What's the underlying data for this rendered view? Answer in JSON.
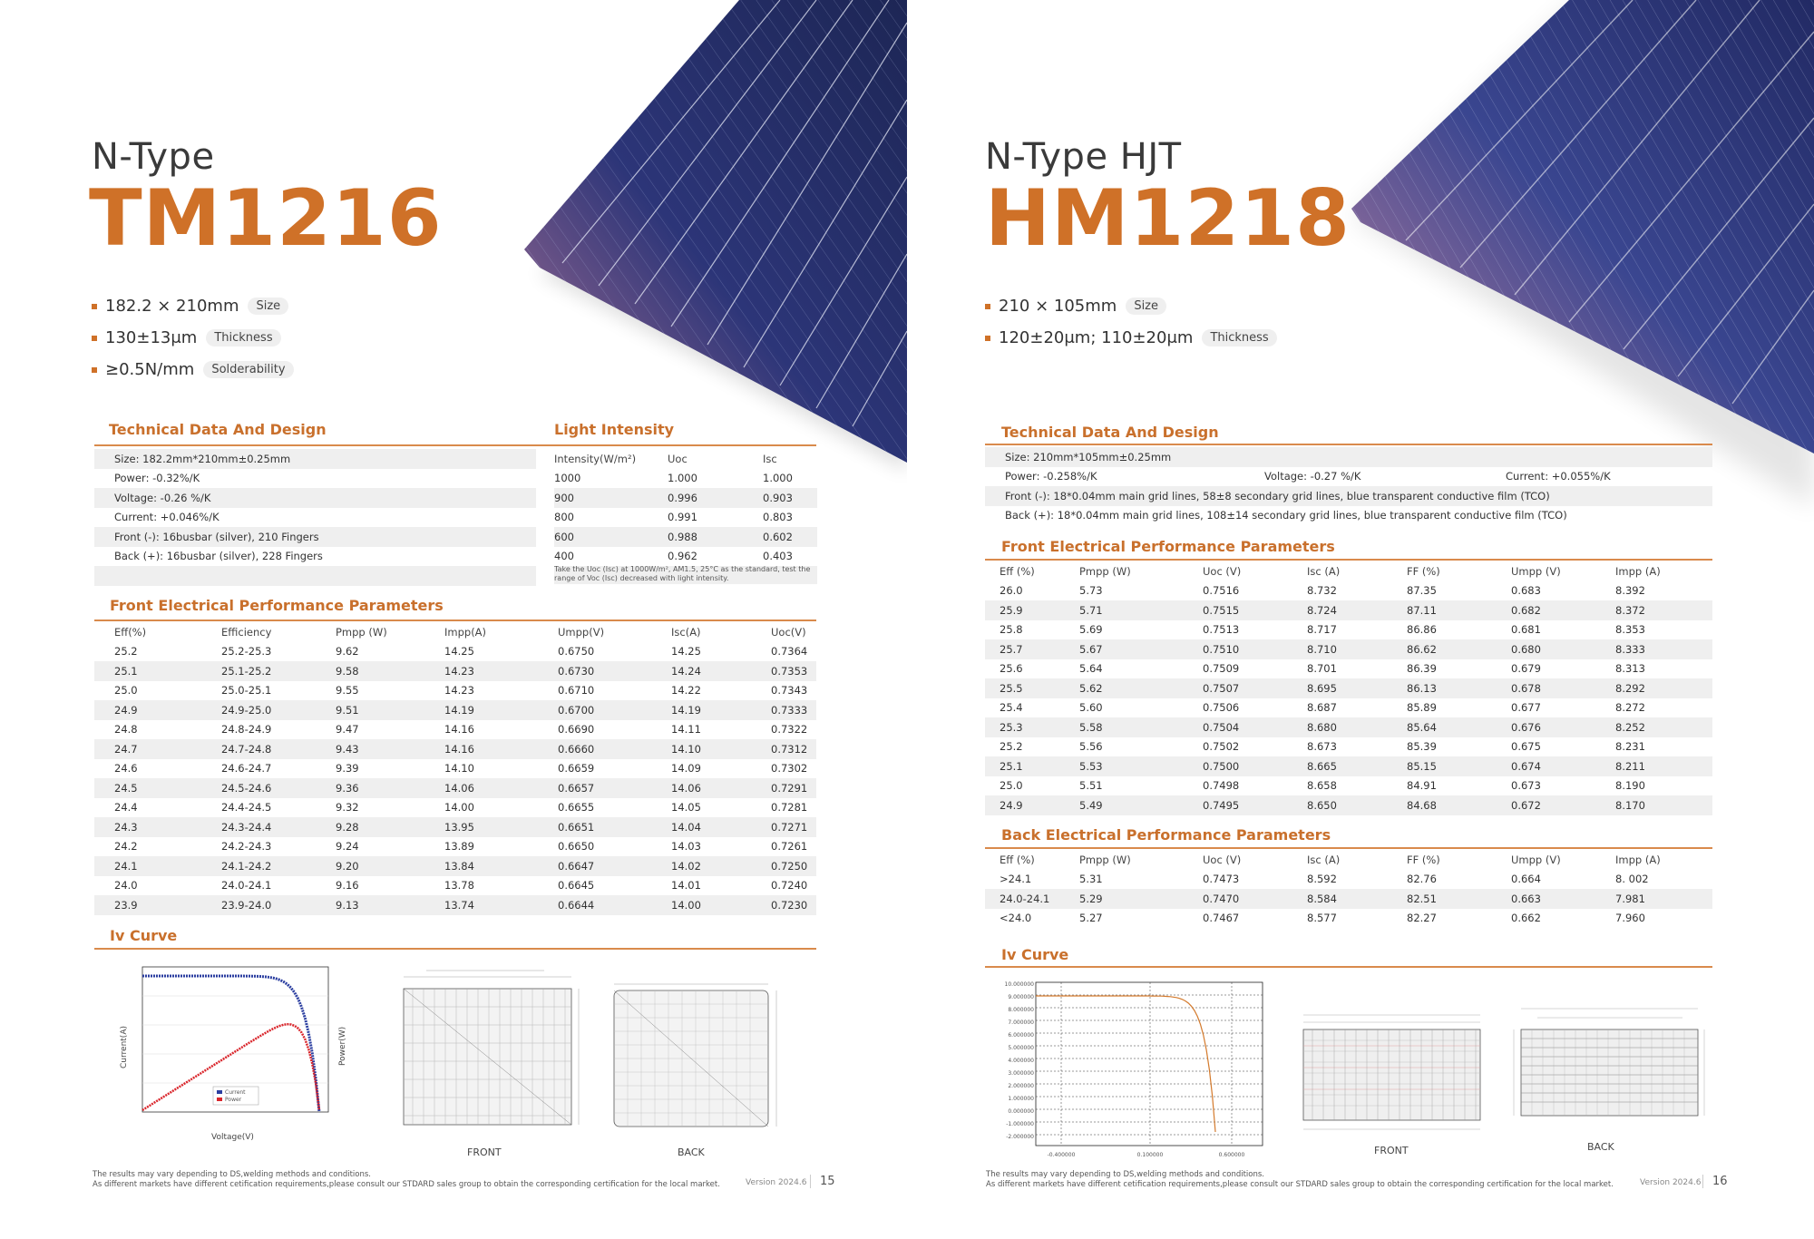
{
  "left": {
    "subtitle": "N-Type",
    "model": "TM1216",
    "specs": [
      {
        "value": "182.2 × 210mm",
        "tag": "Size"
      },
      {
        "value": "130±13μm",
        "tag": "Thickness"
      },
      {
        "value": "≥0.5N/mm",
        "tag": "Solderability"
      }
    ],
    "tech_title": "Technical Data And Design",
    "tech_rows": [
      "Size: 182.2mm*210mm±0.25mm",
      "Power: -0.32%/K",
      "Voltage: -0.26 %/K",
      "Current: +0.046%/K",
      "Front (-): 16busbar (silver), 210 Fingers",
      "Back (+): 16busbar (silver), 228 Fingers"
    ],
    "light_title": "Light Intensity",
    "light_headers": [
      "Intensity(W/m²)",
      "Uoc",
      "Isc"
    ],
    "light_rows": [
      [
        "1000",
        "1.000",
        "1.000"
      ],
      [
        "900",
        "0.996",
        "0.903"
      ],
      [
        "800",
        "0.991",
        "0.803"
      ],
      [
        "600",
        "0.988",
        "0.602"
      ],
      [
        "400",
        "0.962",
        "0.403"
      ]
    ],
    "light_note": "Take the Uoc (Isc) at 1000W/m², AM1.5, 25°C as the standard, test the range of Voc (Isc) decreased with light intensity.",
    "front_title": "Front Electrical Performance Parameters",
    "front_headers": [
      "Eff(%)",
      "Efficiency",
      "Pmpp (W)",
      "Impp(A)",
      "Umpp(V)",
      "Isc(A)",
      "Uoc(V)"
    ],
    "front_rows": [
      [
        "25.2",
        "25.2-25.3",
        "9.62",
        "14.25",
        "0.6750",
        "14.25",
        "0.7364"
      ],
      [
        "25.1",
        "25.1-25.2",
        "9.58",
        "14.23",
        "0.6730",
        "14.24",
        "0.7353"
      ],
      [
        "25.0",
        "25.0-25.1",
        "9.55",
        "14.23",
        "0.6710",
        "14.22",
        "0.7343"
      ],
      [
        "24.9",
        "24.9-25.0",
        "9.51",
        "14.19",
        "0.6700",
        "14.19",
        "0.7333"
      ],
      [
        "24.8",
        "24.8-24.9",
        "9.47",
        "14.16",
        "0.6690",
        "14.11",
        "0.7322"
      ],
      [
        "24.7",
        "24.7-24.8",
        "9.43",
        "14.16",
        "0.6660",
        "14.10",
        "0.7312"
      ],
      [
        "24.6",
        "24.6-24.7",
        "9.39",
        "14.10",
        "0.6659",
        "14.09",
        "0.7302"
      ],
      [
        "24.5",
        "24.5-24.6",
        "9.36",
        "14.06",
        "0.6657",
        "14.06",
        "0.7291"
      ],
      [
        "24.4",
        "24.4-24.5",
        "9.32",
        "14.00",
        "0.6655",
        "14.05",
        "0.7281"
      ],
      [
        "24.3",
        "24.3-24.4",
        "9.28",
        "13.95",
        "0.6651",
        "14.04",
        "0.7271"
      ],
      [
        "24.2",
        "24.2-24.3",
        "9.24",
        "13.89",
        "0.6650",
        "14.03",
        "0.7261"
      ],
      [
        "24.1",
        "24.1-24.2",
        "9.20",
        "13.84",
        "0.6647",
        "14.02",
        "0.7250"
      ],
      [
        "24.0",
        "24.0-24.1",
        "9.16",
        "13.78",
        "0.6645",
        "14.01",
        "0.7240"
      ],
      [
        "23.9",
        "23.9-24.0",
        "9.13",
        "13.74",
        "0.6644",
        "14.00",
        "0.7230"
      ]
    ],
    "iv_title": "Iv Curve",
    "iv_ylabel": "Current(A)",
    "iv_y2label": "Power(W)",
    "iv_xlabel": "Voltage(V)",
    "iv_legend": [
      "Current",
      "Power"
    ],
    "front_caption": "FRONT",
    "back_caption": "BACK",
    "footer_1": "The results may vary depending to DS,welding methods and conditions.",
    "footer_2": "As different markets have different cetification requirements,please consult our STDARD sales group to obtain the corresponding certification for the local market.",
    "version": "Version 2024.6",
    "page": "15"
  },
  "right": {
    "subtitle": "N-Type HJT",
    "model": "HM1218",
    "specs": [
      {
        "value": "210 × 105mm",
        "tag": "Size"
      },
      {
        "value": "120±20μm; 110±20μm",
        "tag": "Thickness"
      }
    ],
    "tech_title": "Technical Data And Design",
    "tech_size": "Size: 210mm*105mm±0.25mm",
    "tech_power": "Power: -0.258%/K",
    "tech_voltage": "Voltage: -0.27 %/K",
    "tech_current": "Current: +0.055%/K",
    "tech_front": "Front (-): 18*0.04mm main grid lines, 58±8 secondary grid lines, blue transparent conductive film (TCO)",
    "tech_back": "Back (+): 18*0.04mm main grid lines, 108±14 secondary grid lines, blue transparent conductive film (TCO)",
    "front_title": "Front Electrical Performance Parameters",
    "front_headers": [
      "Eff (%)",
      "Pmpp (W)",
      "Uoc (V)",
      "Isc (A)",
      "FF (%)",
      "Umpp (V)",
      "Impp (A)"
    ],
    "front_rows": [
      [
        "26.0",
        "5.73",
        "0.7516",
        "8.732",
        "87.35",
        "0.683",
        "8.392"
      ],
      [
        "25.9",
        "5.71",
        "0.7515",
        "8.724",
        "87.11",
        "0.682",
        "8.372"
      ],
      [
        "25.8",
        "5.69",
        "0.7513",
        "8.717",
        "86.86",
        "0.681",
        "8.353"
      ],
      [
        "25.7",
        "5.67",
        "0.7510",
        "8.710",
        "86.62",
        "0.680",
        "8.333"
      ],
      [
        "25.6",
        "5.64",
        "0.7509",
        "8.701",
        "86.39",
        "0.679",
        "8.313"
      ],
      [
        "25.5",
        "5.62",
        "0.7507",
        "8.695",
        "86.13",
        "0.678",
        "8.292"
      ],
      [
        "25.4",
        "5.60",
        "0.7506",
        "8.687",
        "85.89",
        "0.677",
        "8.272"
      ],
      [
        "25.3",
        "5.58",
        "0.7504",
        "8.680",
        "85.64",
        "0.676",
        "8.252"
      ],
      [
        "25.2",
        "5.56",
        "0.7502",
        "8.673",
        "85.39",
        "0.675",
        "8.231"
      ],
      [
        "25.1",
        "5.53",
        "0.7500",
        "8.665",
        "85.15",
        "0.674",
        "8.211"
      ],
      [
        "25.0",
        "5.51",
        "0.7498",
        "8.658",
        "84.91",
        "0.673",
        "8.190"
      ],
      [
        "24.9",
        "5.49",
        "0.7495",
        "8.650",
        "84.68",
        "0.672",
        "8.170"
      ]
    ],
    "back_title": "Back Electrical Performance Parameters",
    "back_headers": [
      "Eff (%)",
      "Pmpp (W)",
      "Uoc (V)",
      "Isc (A)",
      "FF (%)",
      "Umpp (V)",
      "Impp (A)"
    ],
    "back_rows": [
      [
        ">24.1",
        "5.31",
        "0.7473",
        "8.592",
        "82.76",
        "0.664",
        "8. 002"
      ],
      [
        "24.0-24.1",
        "5.29",
        "0.7470",
        "8.584",
        "82.51",
        "0.663",
        "7.981"
      ],
      [
        "<24.0",
        "5.27",
        "0.7467",
        "8.577",
        "82.27",
        "0.662",
        "7.960"
      ]
    ],
    "iv_title": "Iv Curve",
    "iv_yticks": [
      "10.000000",
      "9.000000",
      "8.000000",
      "7.000000",
      "6.000000",
      "5.000000",
      "4.000000",
      "3.000000",
      "2.000000",
      "1.000000",
      "0.000000",
      "-1.000000",
      "-2.000000"
    ],
    "iv_xticks": [
      "-0.400000",
      "0.100000",
      "0.600000"
    ],
    "front_caption": "FRONT",
    "back_caption": "BACK",
    "footer_1": "The results may vary depending to DS,welding methods and conditions.",
    "footer_2": "As different markets have different cetification requirements,please consult our STDARD sales group to obtain the corresponding certification for the local market.",
    "version": "Version 2024.6",
    "page": "16"
  },
  "colors": {
    "accent": "#cf7128",
    "rule": "#d98a4c",
    "shade": "#efefef",
    "cell_blue": "#25306a"
  }
}
